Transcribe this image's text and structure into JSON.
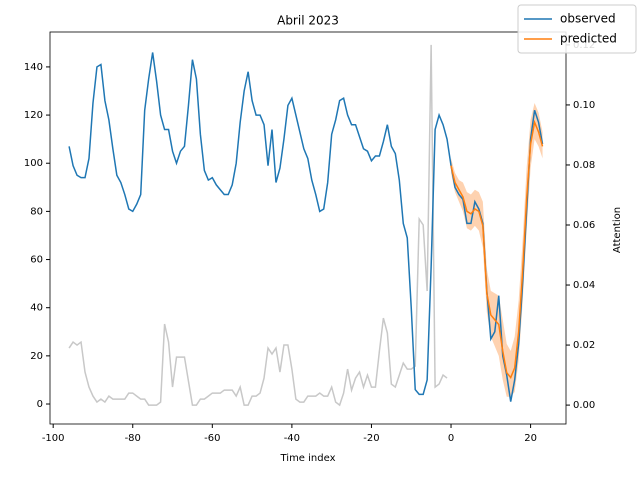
{
  "chart_data": {
    "type": "line",
    "title": "Abril 2023",
    "xlabel": "Time index",
    "y2label": "Attention",
    "xlim": [
      -100.8,
      28.9
    ],
    "ylim": [
      -8.3,
      154.5
    ],
    "y2lim": [
      -0.0063,
      0.1243
    ],
    "xticks": [
      -100,
      -80,
      -60,
      -40,
      -20,
      0,
      20
    ],
    "yticks": [
      0,
      20,
      40,
      60,
      80,
      100,
      120,
      140
    ],
    "y2ticks": [
      {
        "value": 0,
        "label": "0.00"
      },
      {
        "value": 0.02,
        "label": "0.02"
      },
      {
        "value": 0.04,
        "label": "0.04"
      },
      {
        "value": 0.06,
        "label": "0.06"
      },
      {
        "value": 0.08,
        "label": "0.08"
      },
      {
        "value": 0.1,
        "label": "0.10"
      },
      {
        "value": 0.12,
        "label": "0.12"
      }
    ],
    "legend": "upper right",
    "series": [
      {
        "name": "observed",
        "color": "#1f77b4",
        "x": [
          -96,
          -95,
          -94,
          -93,
          -92,
          -91,
          -90,
          -89,
          -88,
          -87,
          -86,
          -85,
          -84,
          -83,
          -82,
          -81,
          -80,
          -79,
          -78,
          -77,
          -76,
          -75,
          -74,
          -73,
          -72,
          -71,
          -70,
          -69,
          -68,
          -67,
          -66,
          -65,
          -64,
          -63,
          -62,
          -61,
          -60,
          -59,
          -58,
          -57,
          -56,
          -55,
          -54,
          -53,
          -52,
          -51,
          -50,
          -49,
          -48,
          -47,
          -46,
          -45,
          -44,
          -43,
          -42,
          -41,
          -40,
          -39,
          -38,
          -37,
          -36,
          -35,
          -34,
          -33,
          -32,
          -31,
          -30,
          -29,
          -28,
          -27,
          -26,
          -25,
          -24,
          -23,
          -22,
          -21,
          -20,
          -19,
          -18,
          -17,
          -16,
          -15,
          -14,
          -13,
          -12,
          -11,
          -10,
          -9,
          -8,
          -7,
          -6,
          -5,
          -4,
          -3,
          -2,
          -1,
          0,
          1,
          2,
          3,
          4,
          5,
          6,
          7,
          8,
          9,
          10,
          11,
          12,
          13,
          14,
          15,
          16,
          17,
          18,
          19,
          20,
          21,
          22,
          23
        ],
        "values": [
          107,
          99,
          95,
          94,
          94,
          102,
          125,
          140,
          141,
          126,
          118,
          106,
          95,
          92,
          87,
          81,
          80,
          83,
          87,
          122,
          135,
          146,
          134,
          120,
          114,
          114,
          105,
          100,
          105,
          107,
          124,
          143,
          135,
          112,
          97,
          93,
          94,
          91,
          89,
          87,
          87,
          91,
          100,
          117,
          130,
          138,
          126,
          120,
          120,
          116,
          99,
          114,
          92,
          98,
          110,
          124,
          127,
          120,
          113,
          106,
          102,
          93,
          87,
          80,
          81,
          92,
          112,
          118,
          126,
          127,
          120,
          116,
          116,
          111,
          106,
          105,
          101,
          103,
          103,
          109,
          116,
          107,
          104,
          93,
          75,
          69,
          40,
          6,
          4,
          4,
          10,
          57,
          114,
          120,
          116,
          110,
          99,
          90,
          87,
          85,
          75,
          75,
          84,
          81,
          75,
          47,
          27,
          30,
          45,
          20,
          12,
          1,
          10,
          25,
          50,
          80,
          110,
          122,
          117,
          108
        ]
      },
      {
        "name": "predicted",
        "color": "#ff7f0e",
        "x": [
          0,
          1,
          2,
          3,
          4,
          5,
          6,
          7,
          8,
          9,
          10,
          11,
          12,
          13,
          14,
          15,
          16,
          17,
          18,
          19,
          20,
          21,
          22,
          23
        ],
        "values": [
          99,
          92,
          89,
          86,
          80,
          79,
          81,
          80,
          74,
          46,
          37,
          35,
          33,
          22,
          13,
          11,
          15,
          30,
          55,
          85,
          108,
          117,
          113,
          107
        ]
      },
      {
        "color": "#c8c8c8",
        "axis": "y2",
        "x": [
          -96,
          -95,
          -94,
          -93,
          -92,
          -91,
          -90,
          -89,
          -88,
          -87,
          -86,
          -85,
          -84,
          -83,
          -82,
          -81,
          -80,
          -79,
          -78,
          -77,
          -76,
          -75,
          -74,
          -73,
          -72,
          -71,
          -70,
          -69,
          -68,
          -67,
          -66,
          -65,
          -64,
          -63,
          -62,
          -61,
          -60,
          -59,
          -58,
          -57,
          -56,
          -55,
          -54,
          -53,
          -52,
          -51,
          -50,
          -49,
          -48,
          -47,
          -46,
          -45,
          -44,
          -43,
          -42,
          -41,
          -40,
          -39,
          -38,
          -37,
          -36,
          -35,
          -34,
          -33,
          -32,
          -31,
          -30,
          -29,
          -28,
          -27,
          -26,
          -25,
          -24,
          -23,
          -22,
          -21,
          -20,
          -19,
          -18,
          -17,
          -16,
          -15,
          -14,
          -13,
          -12,
          -11,
          -10,
          -9,
          -8,
          -7,
          -6,
          -5,
          -4,
          -3,
          -2,
          -1
        ],
        "values": [
          0.019,
          0.021,
          0.02,
          0.021,
          0.011,
          0.006,
          0.003,
          0.001,
          0.002,
          0.001,
          0.003,
          0.002,
          0.002,
          0.002,
          0.002,
          0.004,
          0.004,
          0.003,
          0.002,
          0.002,
          0,
          0,
          0,
          0.001,
          0.027,
          0.021,
          0.006,
          0.016,
          0.016,
          0.016,
          0.008,
          0,
          0,
          0.002,
          0.002,
          0.003,
          0.004,
          0.004,
          0.004,
          0.005,
          0.005,
          0.005,
          0.003,
          0.006,
          0,
          0,
          0.003,
          0.003,
          0.004,
          0.009,
          0.019,
          0.017,
          0.019,
          0.011,
          0.02,
          0.02,
          0.012,
          0.002,
          0.001,
          0.001,
          0.003,
          0.003,
          0.003,
          0.004,
          0.003,
          0.003,
          0.006,
          0.001,
          0,
          0.004,
          0.012,
          0.005,
          0.009,
          0.011,
          0.006,
          0.01,
          0.006,
          0.006,
          0.018,
          0.029,
          0.024,
          0.007,
          0.006,
          0.01,
          0.014,
          0.012,
          0.012,
          0.013,
          0.062,
          0.06,
          0.038,
          0.12,
          0.006,
          0.007,
          0.01,
          0.009
        ]
      }
    ],
    "bands": [
      {
        "color": "#fdbf8f",
        "x": [
          0,
          1,
          2,
          3,
          4,
          5,
          6,
          7,
          8,
          9,
          10,
          11,
          12,
          13,
          14,
          15,
          16,
          17,
          18,
          19,
          20,
          21,
          22,
          23
        ],
        "lower": [
          96,
          88,
          84,
          80,
          73,
          72,
          74,
          72,
          65,
          38,
          28,
          24,
          20,
          10,
          3,
          3,
          5,
          18,
          42,
          72,
          98,
          110,
          107,
          102
        ],
        "upper": [
          102,
          96,
          93,
          92,
          88,
          87,
          89,
          88,
          84,
          56,
          47,
          46,
          45,
          35,
          25,
          22,
          28,
          43,
          68,
          98,
          118,
          125,
          121,
          113
        ]
      }
    ]
  }
}
